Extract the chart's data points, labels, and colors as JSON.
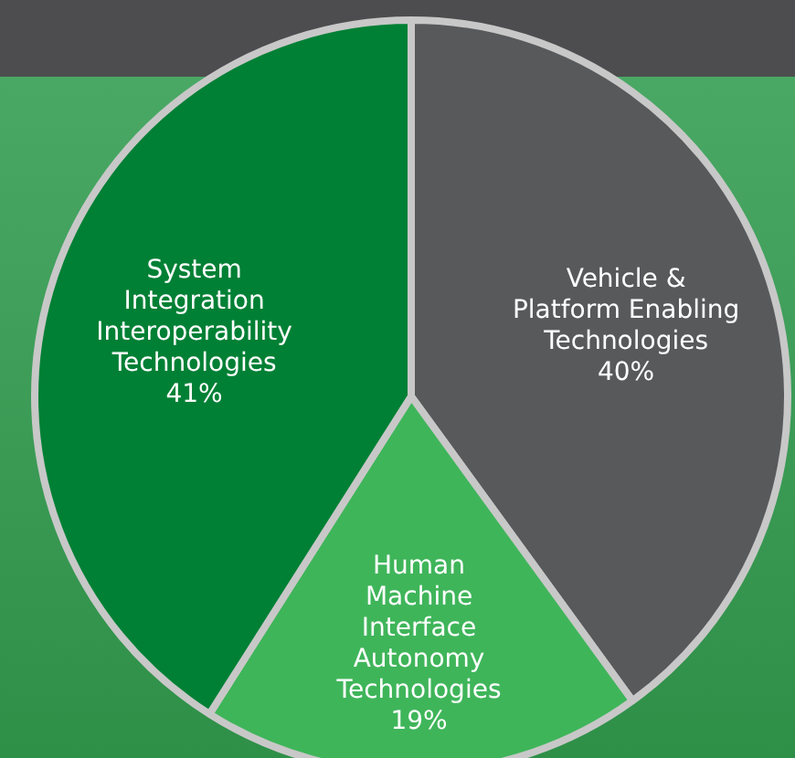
{
  "chart_data": {
    "type": "pie",
    "categories": [
      "Vehicle & Platform Enabling Technologies",
      "Human Machine Interface Autonomy Technologies",
      "System Integration Interoperability Technologies"
    ],
    "values": [
      40,
      19,
      41
    ],
    "colors": [
      "#58595b",
      "#3fb55a",
      "#008035"
    ],
    "value_labels": [
      "40%",
      "19%",
      "41%"
    ],
    "legend": false
  }
}
